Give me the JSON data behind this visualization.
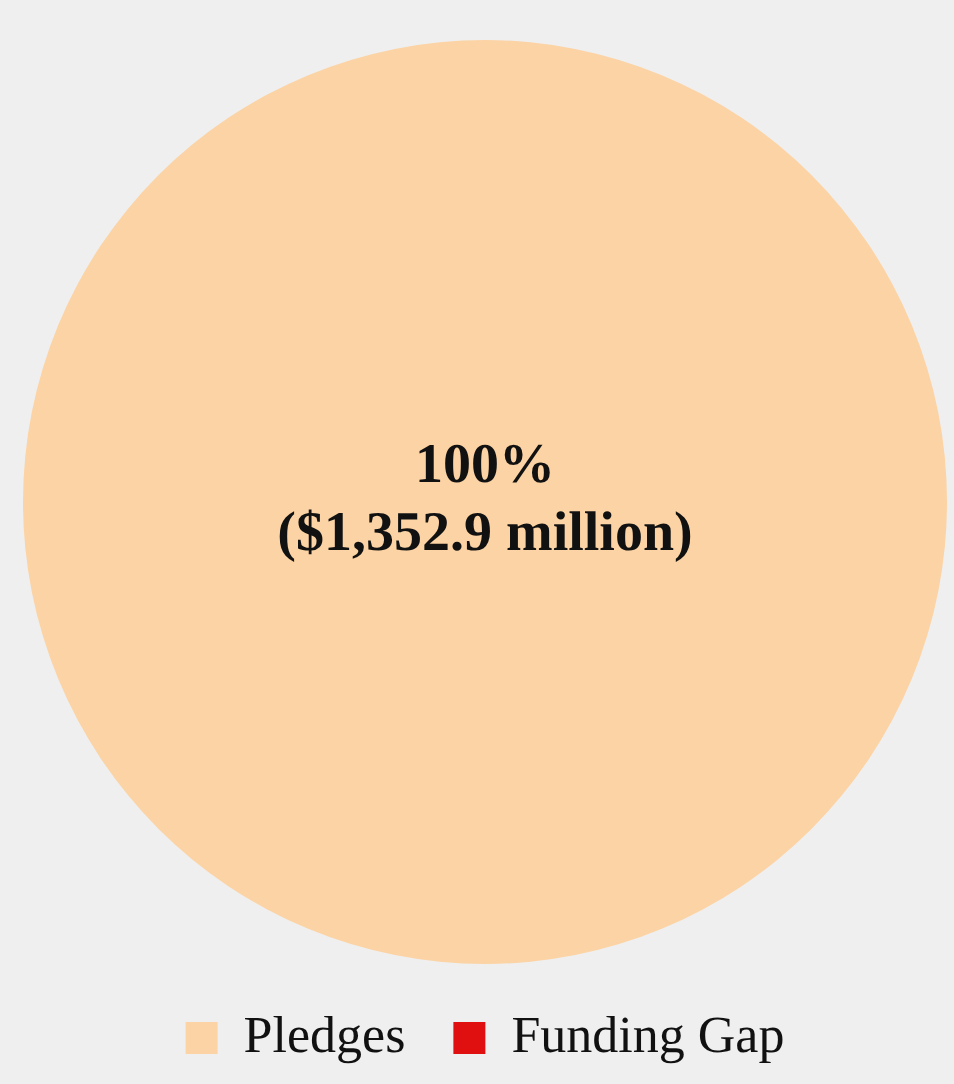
{
  "chart_data": {
    "type": "pie",
    "categories": [
      "Pledges",
      "Funding Gap"
    ],
    "values": [
      100,
      0
    ],
    "colors": [
      "#fcd3a4",
      "#e01010"
    ],
    "value_labels": [
      "100%\n($1,352.9 million)",
      null
    ],
    "legend": "bottom"
  }
}
